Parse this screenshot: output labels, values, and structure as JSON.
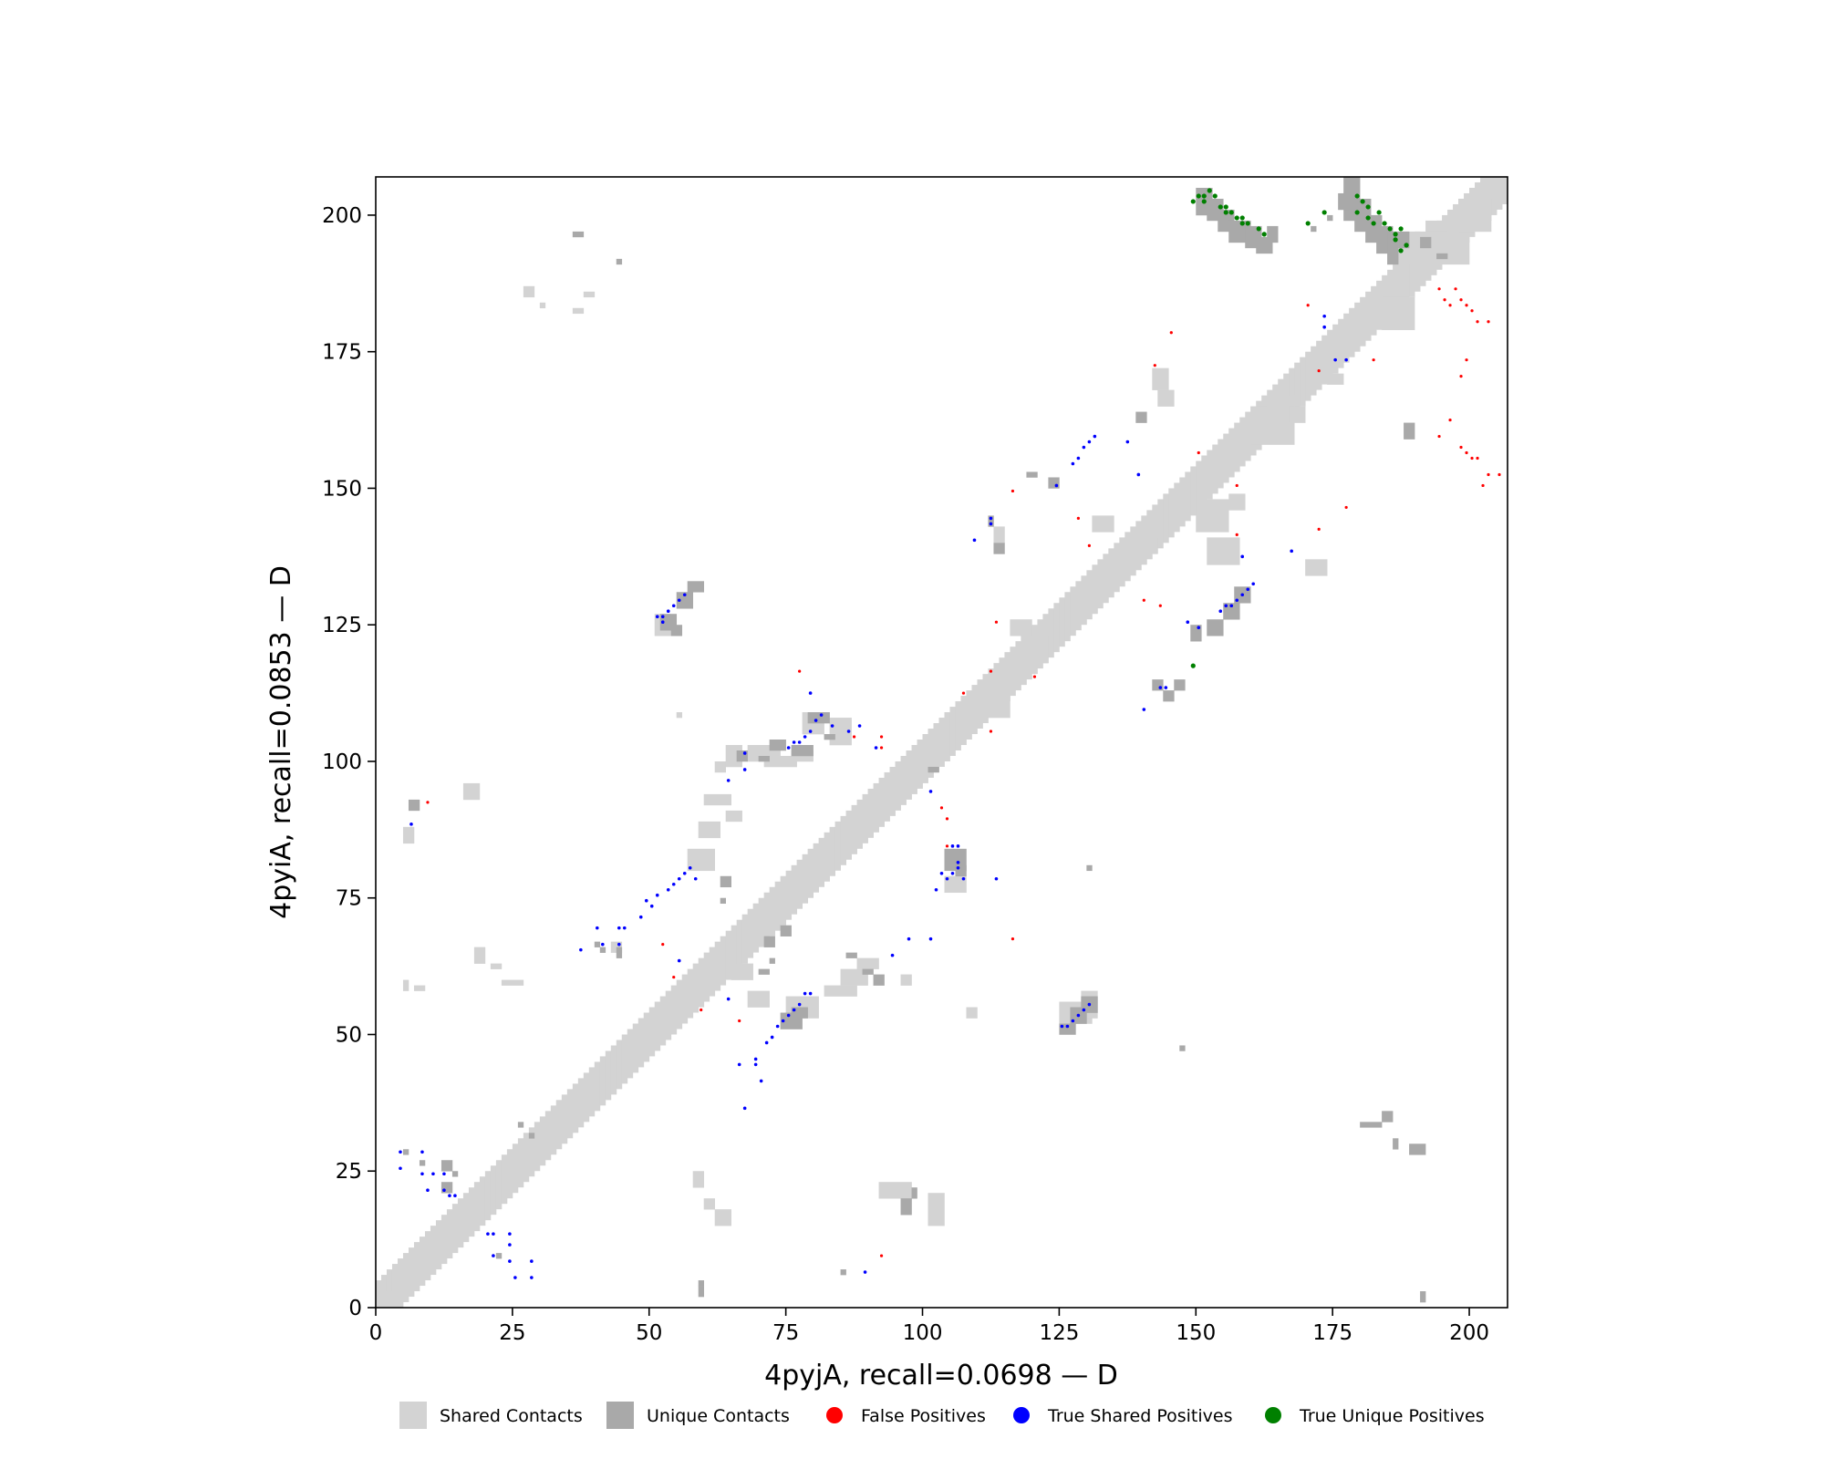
{
  "chart_data": {
    "type": "scatter",
    "title": "",
    "xlabel": "4pyjA, recall=0.0698 — D",
    "ylabel": "4pyiA, recall=0.0853 — D",
    "xlim": [
      0,
      207
    ],
    "ylim": [
      0,
      207
    ],
    "xticks": [
      0,
      25,
      50,
      75,
      100,
      125,
      150,
      175,
      200
    ],
    "yticks": [
      0,
      25,
      50,
      75,
      100,
      125,
      150,
      175,
      200
    ],
    "grid": false,
    "legend_position": "bottom",
    "legend": [
      {
        "label": "Shared Contacts",
        "marker": "square",
        "color": "#d3d3d3"
      },
      {
        "label": "Unique Contacts",
        "marker": "square",
        "color": "#a9a9a9"
      },
      {
        "label": "False Positives",
        "marker": "circle",
        "color": "#ff0000"
      },
      {
        "label": "True Shared Positives",
        "marker": "circle",
        "color": "#0000ff"
      },
      {
        "label": "True Unique Positives",
        "marker": "circle",
        "color": "#008000"
      }
    ],
    "diagonal_band": {
      "from": 0,
      "to": 206,
      "halfwidth": 4
    },
    "shared_contacts": [
      [
        0,
        0,
        3,
        3
      ],
      [
        5,
        85,
        2,
        3
      ],
      [
        5,
        58,
        1,
        2
      ],
      [
        7,
        58,
        2,
        1
      ],
      [
        16,
        93,
        3,
        3
      ],
      [
        18,
        63,
        2,
        3
      ],
      [
        21,
        62,
        2,
        1
      ],
      [
        23,
        59,
        4,
        1
      ],
      [
        27,
        185,
        2,
        2
      ],
      [
        30,
        183,
        1,
        1
      ],
      [
        33,
        34,
        5,
        4
      ],
      [
        51,
        123,
        3,
        4
      ],
      [
        55,
        108,
        1,
        1
      ],
      [
        57,
        80,
        5,
        4
      ],
      [
        59,
        86,
        4,
        3
      ],
      [
        62,
        98,
        2,
        2
      ],
      [
        60,
        92,
        5,
        2
      ],
      [
        64,
        89,
        3,
        2
      ],
      [
        64,
        99,
        3,
        4
      ],
      [
        65,
        60,
        4,
        3
      ],
      [
        68,
        100,
        6,
        3
      ],
      [
        71,
        99,
        6,
        2
      ],
      [
        75,
        53,
        6,
        4
      ],
      [
        78,
        105,
        4,
        4
      ],
      [
        82,
        57,
        6,
        2
      ],
      [
        83,
        103,
        4,
        5
      ],
      [
        85,
        59,
        5,
        3
      ],
      [
        88,
        62,
        4,
        2
      ],
      [
        92,
        20,
        6,
        3
      ],
      [
        96,
        59,
        2,
        2
      ],
      [
        101,
        15,
        3,
        6
      ],
      [
        104,
        76,
        4,
        3
      ],
      [
        108,
        53,
        2,
        2
      ],
      [
        113,
        140,
        2,
        3
      ],
      [
        125,
        52,
        6,
        4
      ],
      [
        129,
        53,
        3,
        5
      ],
      [
        116,
        123,
        4,
        3
      ],
      [
        118,
        118,
        5,
        5
      ],
      [
        110,
        108,
        6,
        6
      ],
      [
        150,
        142,
        6,
        6
      ],
      [
        152,
        136,
        6,
        5
      ],
      [
        160,
        158,
        8,
        6
      ],
      [
        170,
        134,
        4,
        3
      ],
      [
        174,
        169,
        3,
        2
      ],
      [
        185,
        191,
        6,
        6
      ],
      [
        167,
        162,
        3,
        3
      ],
      [
        192,
        191,
        8,
        8
      ],
      [
        184,
        179,
        6,
        6
      ],
      [
        190,
        192,
        6,
        5
      ],
      [
        198,
        197,
        6,
        6
      ],
      [
        58,
        22,
        2,
        3
      ],
      [
        60,
        18,
        2,
        2
      ],
      [
        62,
        15,
        3,
        3
      ],
      [
        68,
        55,
        4,
        3
      ],
      [
        43,
        65,
        2,
        2
      ],
      [
        38,
        185,
        2,
        1
      ],
      [
        36,
        182,
        2,
        1
      ],
      [
        76,
        100,
        4,
        2
      ],
      [
        131,
        142,
        4,
        3
      ],
      [
        142,
        168,
        3,
        4
      ],
      [
        143,
        165,
        3,
        3
      ],
      [
        160,
        162,
        3,
        3
      ],
      [
        163,
        159,
        3,
        2
      ],
      [
        166,
        165,
        2,
        2
      ],
      [
        156,
        146,
        3,
        3
      ],
      [
        140,
        138,
        3,
        3
      ]
    ],
    "unique_contacts": [
      [
        191,
        1,
        1,
        2
      ],
      [
        184,
        34,
        2,
        2
      ],
      [
        180,
        33,
        4,
        1
      ],
      [
        186,
        29,
        1,
        2
      ],
      [
        189,
        28,
        3,
        2
      ],
      [
        6,
        91,
        2,
        2
      ],
      [
        5,
        28,
        1,
        1
      ],
      [
        8,
        26,
        1,
        1
      ],
      [
        12,
        25,
        2,
        2
      ],
      [
        12,
        21,
        2,
        2
      ],
      [
        26,
        33,
        1,
        1
      ],
      [
        28,
        31,
        1,
        1
      ],
      [
        14,
        24,
        1,
        1
      ],
      [
        36,
        196,
        2,
        1
      ],
      [
        22,
        9,
        1,
        1
      ],
      [
        44,
        191,
        1,
        1
      ],
      [
        40,
        66,
        1,
        1
      ],
      [
        41,
        65,
        1,
        1
      ],
      [
        44,
        64,
        1,
        2
      ],
      [
        52,
        124,
        3,
        3
      ],
      [
        54,
        123,
        2,
        2
      ],
      [
        55,
        128,
        3,
        3
      ],
      [
        57,
        131,
        3,
        2
      ],
      [
        59,
        2,
        1,
        2
      ],
      [
        59,
        4,
        1,
        1
      ],
      [
        63,
        77,
        2,
        2
      ],
      [
        63,
        74,
        1,
        1
      ],
      [
        66,
        100,
        2,
        2
      ],
      [
        70,
        100,
        2,
        1
      ],
      [
        72,
        102,
        3,
        2
      ],
      [
        76,
        101,
        4,
        2
      ],
      [
        79,
        107,
        4,
        2
      ],
      [
        82,
        104,
        2,
        1
      ],
      [
        71,
        66,
        2,
        2
      ],
      [
        74,
        68,
        2,
        2
      ],
      [
        70,
        61,
        2,
        1
      ],
      [
        72,
        63,
        1,
        1
      ],
      [
        74,
        51,
        4,
        3
      ],
      [
        76,
        53,
        3,
        2
      ],
      [
        85,
        6,
        1,
        1
      ],
      [
        86,
        64,
        2,
        1
      ],
      [
        89,
        61,
        2,
        1
      ],
      [
        91,
        59,
        2,
        2
      ],
      [
        96,
        17,
        2,
        3
      ],
      [
        98,
        20,
        1,
        2
      ],
      [
        101,
        98,
        2,
        1
      ],
      [
        104,
        80,
        4,
        4
      ],
      [
        106,
        79,
        2,
        2
      ],
      [
        112,
        143,
        1,
        2
      ],
      [
        113,
        138,
        2,
        2
      ],
      [
        119,
        152,
        2,
        1
      ],
      [
        123,
        150,
        2,
        2
      ],
      [
        125,
        50,
        3,
        2
      ],
      [
        127,
        52,
        3,
        3
      ],
      [
        129,
        54,
        3,
        3
      ],
      [
        130,
        80,
        1,
        1
      ],
      [
        139,
        162,
        2,
        2
      ],
      [
        142,
        113,
        2,
        2
      ],
      [
        144,
        111,
        2,
        2
      ],
      [
        146,
        113,
        2,
        2
      ],
      [
        147,
        47,
        1,
        1
      ],
      [
        149,
        122,
        2,
        3
      ],
      [
        152,
        123,
        3,
        3
      ],
      [
        155,
        126,
        3,
        3
      ],
      [
        157,
        129,
        3,
        3
      ],
      [
        150,
        200,
        3,
        5
      ],
      [
        152,
        199,
        3,
        4
      ],
      [
        154,
        197,
        3,
        4
      ],
      [
        156,
        195,
        4,
        4
      ],
      [
        159,
        194,
        3,
        4
      ],
      [
        161,
        193,
        3,
        3
      ],
      [
        163,
        195,
        2,
        3
      ],
      [
        177,
        199,
        3,
        8
      ],
      [
        179,
        197,
        3,
        6
      ],
      [
        181,
        195,
        3,
        5
      ],
      [
        183,
        193,
        3,
        5
      ],
      [
        185,
        191,
        2,
        6
      ],
      [
        187,
        194,
        2,
        3
      ],
      [
        176,
        201,
        2,
        3
      ],
      [
        191,
        194,
        2,
        2
      ],
      [
        194,
        192,
        2,
        1
      ],
      [
        188,
        159,
        2,
        3
      ],
      [
        171,
        197,
        1,
        1
      ],
      [
        174,
        199,
        1,
        1
      ]
    ],
    "false_positives": [
      [
        9,
        92
      ],
      [
        52,
        66
      ],
      [
        54,
        60
      ],
      [
        59,
        54
      ],
      [
        66,
        52
      ],
      [
        77,
        116
      ],
      [
        87,
        104
      ],
      [
        92,
        102
      ],
      [
        92,
        104
      ],
      [
        92,
        9
      ],
      [
        103,
        91
      ],
      [
        104,
        89
      ],
      [
        104,
        84
      ],
      [
        112,
        105
      ],
      [
        116,
        67
      ],
      [
        107,
        112
      ],
      [
        112,
        116
      ],
      [
        113,
        125
      ],
      [
        116,
        149
      ],
      [
        120,
        115
      ],
      [
        128,
        144
      ],
      [
        130,
        139
      ],
      [
        140,
        129
      ],
      [
        143,
        128
      ],
      [
        142,
        172
      ],
      [
        145,
        178
      ],
      [
        150,
        156
      ],
      [
        157,
        141
      ],
      [
        157,
        150
      ],
      [
        170,
        183
      ],
      [
        172,
        142
      ],
      [
        172,
        171
      ],
      [
        177,
        146
      ],
      [
        182,
        173
      ],
      [
        194,
        186
      ],
      [
        196,
        183
      ],
      [
        197,
        186
      ],
      [
        198,
        184
      ],
      [
        199,
        183
      ],
      [
        200,
        182
      ],
      [
        201,
        180
      ],
      [
        203,
        180
      ],
      [
        198,
        170
      ],
      [
        199,
        173
      ],
      [
        196,
        162
      ],
      [
        198,
        157
      ],
      [
        199,
        156
      ],
      [
        200,
        155
      ],
      [
        201,
        155
      ],
      [
        202,
        150
      ],
      [
        203,
        152
      ],
      [
        205,
        152
      ],
      [
        194,
        159
      ],
      [
        195,
        184
      ]
    ],
    "true_shared_positives": [
      [
        4,
        25
      ],
      [
        4,
        28
      ],
      [
        8,
        28
      ],
      [
        8,
        24
      ],
      [
        9,
        21
      ],
      [
        10,
        24
      ],
      [
        12,
        24
      ],
      [
        12,
        21
      ],
      [
        13,
        20
      ],
      [
        14,
        20
      ],
      [
        20,
        13
      ],
      [
        21,
        13
      ],
      [
        21,
        9
      ],
      [
        24,
        13
      ],
      [
        24,
        8
      ],
      [
        25,
        5
      ],
      [
        24,
        11
      ],
      [
        28,
        8
      ],
      [
        28,
        5
      ],
      [
        6,
        88
      ],
      [
        37,
        65
      ],
      [
        40,
        69
      ],
      [
        41,
        66
      ],
      [
        44,
        66
      ],
      [
        44,
        69
      ],
      [
        45,
        69
      ],
      [
        48,
        71
      ],
      [
        49,
        74
      ],
      [
        50,
        73
      ],
      [
        51,
        75
      ],
      [
        53,
        76
      ],
      [
        54,
        77
      ],
      [
        55,
        78
      ],
      [
        56,
        79
      ],
      [
        57,
        80
      ],
      [
        58,
        78
      ],
      [
        51,
        126
      ],
      [
        52,
        126
      ],
      [
        52,
        125
      ],
      [
        53,
        127
      ],
      [
        54,
        128
      ],
      [
        55,
        129
      ],
      [
        56,
        130
      ],
      [
        55,
        63
      ],
      [
        64,
        56
      ],
      [
        64,
        96
      ],
      [
        66,
        44
      ],
      [
        67,
        98
      ],
      [
        67,
        101
      ],
      [
        67,
        36
      ],
      [
        69,
        44
      ],
      [
        70,
        41
      ],
      [
        69,
        45
      ],
      [
        71,
        48
      ],
      [
        72,
        49
      ],
      [
        73,
        51
      ],
      [
        74,
        52
      ],
      [
        75,
        53
      ],
      [
        76,
        54
      ],
      [
        77,
        55
      ],
      [
        78,
        57
      ],
      [
        79,
        57
      ],
      [
        75,
        102
      ],
      [
        76,
        103
      ],
      [
        77,
        103
      ],
      [
        78,
        104
      ],
      [
        79,
        105
      ],
      [
        80,
        107
      ],
      [
        79,
        112
      ],
      [
        81,
        108
      ],
      [
        83,
        106
      ],
      [
        86,
        105
      ],
      [
        91,
        102
      ],
      [
        88,
        106
      ],
      [
        89,
        6
      ],
      [
        94,
        64
      ],
      [
        97,
        67
      ],
      [
        101,
        67
      ],
      [
        101,
        94
      ],
      [
        102,
        76
      ],
      [
        103,
        79
      ],
      [
        104,
        78
      ],
      [
        105,
        79
      ],
      [
        106,
        80
      ],
      [
        106,
        81
      ],
      [
        105,
        84
      ],
      [
        106,
        84
      ],
      [
        107,
        78
      ],
      [
        113,
        78
      ],
      [
        109,
        140
      ],
      [
        112,
        143
      ],
      [
        112,
        144
      ],
      [
        124,
        150
      ],
      [
        125,
        51
      ],
      [
        126,
        51
      ],
      [
        127,
        52
      ],
      [
        128,
        53
      ],
      [
        129,
        54
      ],
      [
        130,
        55
      ],
      [
        127,
        154
      ],
      [
        128,
        155
      ],
      [
        129,
        157
      ],
      [
        130,
        158
      ],
      [
        131,
        159
      ],
      [
        137,
        158
      ],
      [
        139,
        152
      ],
      [
        140,
        109
      ],
      [
        143,
        113
      ],
      [
        144,
        113
      ],
      [
        148,
        125
      ],
      [
        150,
        124
      ],
      [
        154,
        127
      ],
      [
        155,
        128
      ],
      [
        156,
        128
      ],
      [
        157,
        129
      ],
      [
        158,
        130
      ],
      [
        159,
        131
      ],
      [
        160,
        132
      ],
      [
        158,
        137
      ],
      [
        167,
        138
      ],
      [
        173,
        179
      ],
      [
        173,
        181
      ],
      [
        175,
        173
      ],
      [
        177,
        173
      ]
    ],
    "true_unique_positives": [
      [
        149,
        202
      ],
      [
        150,
        203
      ],
      [
        151,
        203
      ],
      [
        151,
        202
      ],
      [
        152,
        204
      ],
      [
        153,
        203
      ],
      [
        154,
        201
      ],
      [
        155,
        201
      ],
      [
        155,
        200
      ],
      [
        156,
        200
      ],
      [
        157,
        199
      ],
      [
        158,
        199
      ],
      [
        158,
        198
      ],
      [
        159,
        198
      ],
      [
        161,
        197
      ],
      [
        162,
        196
      ],
      [
        149,
        117
      ],
      [
        170,
        198
      ],
      [
        173,
        200
      ],
      [
        179,
        200
      ],
      [
        179,
        203
      ],
      [
        180,
        202
      ],
      [
        181,
        199
      ],
      [
        181,
        201
      ],
      [
        182,
        198
      ],
      [
        183,
        200
      ],
      [
        184,
        198
      ],
      [
        185,
        197
      ],
      [
        186,
        196
      ],
      [
        186,
        195
      ],
      [
        187,
        193
      ],
      [
        187,
        197
      ],
      [
        188,
        194
      ]
    ]
  }
}
